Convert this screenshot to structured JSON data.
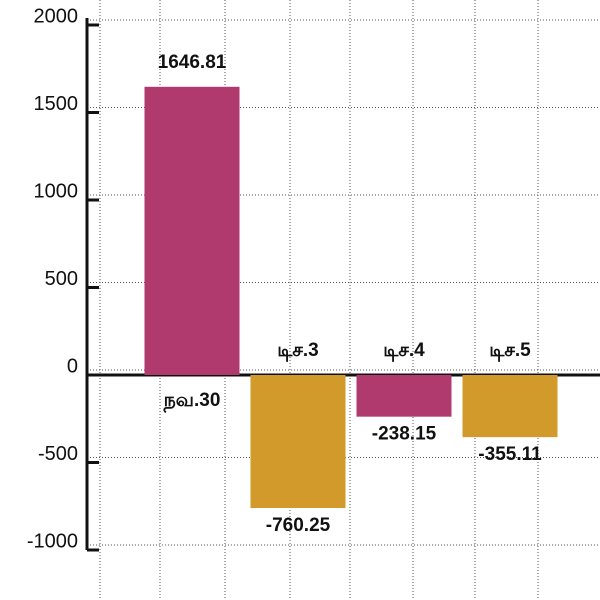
{
  "chart_data": {
    "type": "bar",
    "categories": [
      "நவ.30",
      "டிச.3",
      "டிச.4",
      "டிச.5"
    ],
    "values": [
      1646.81,
      -760.25,
      -238.15,
      -355.11
    ],
    "colors": [
      "#b03a6e",
      "#d19a2a",
      "#b03a6e",
      "#d19a2a"
    ],
    "ylim": [
      -1000,
      2000
    ],
    "yticks": [
      -1000,
      -500,
      0,
      500,
      1000,
      1500,
      2000
    ],
    "grid": true
  }
}
